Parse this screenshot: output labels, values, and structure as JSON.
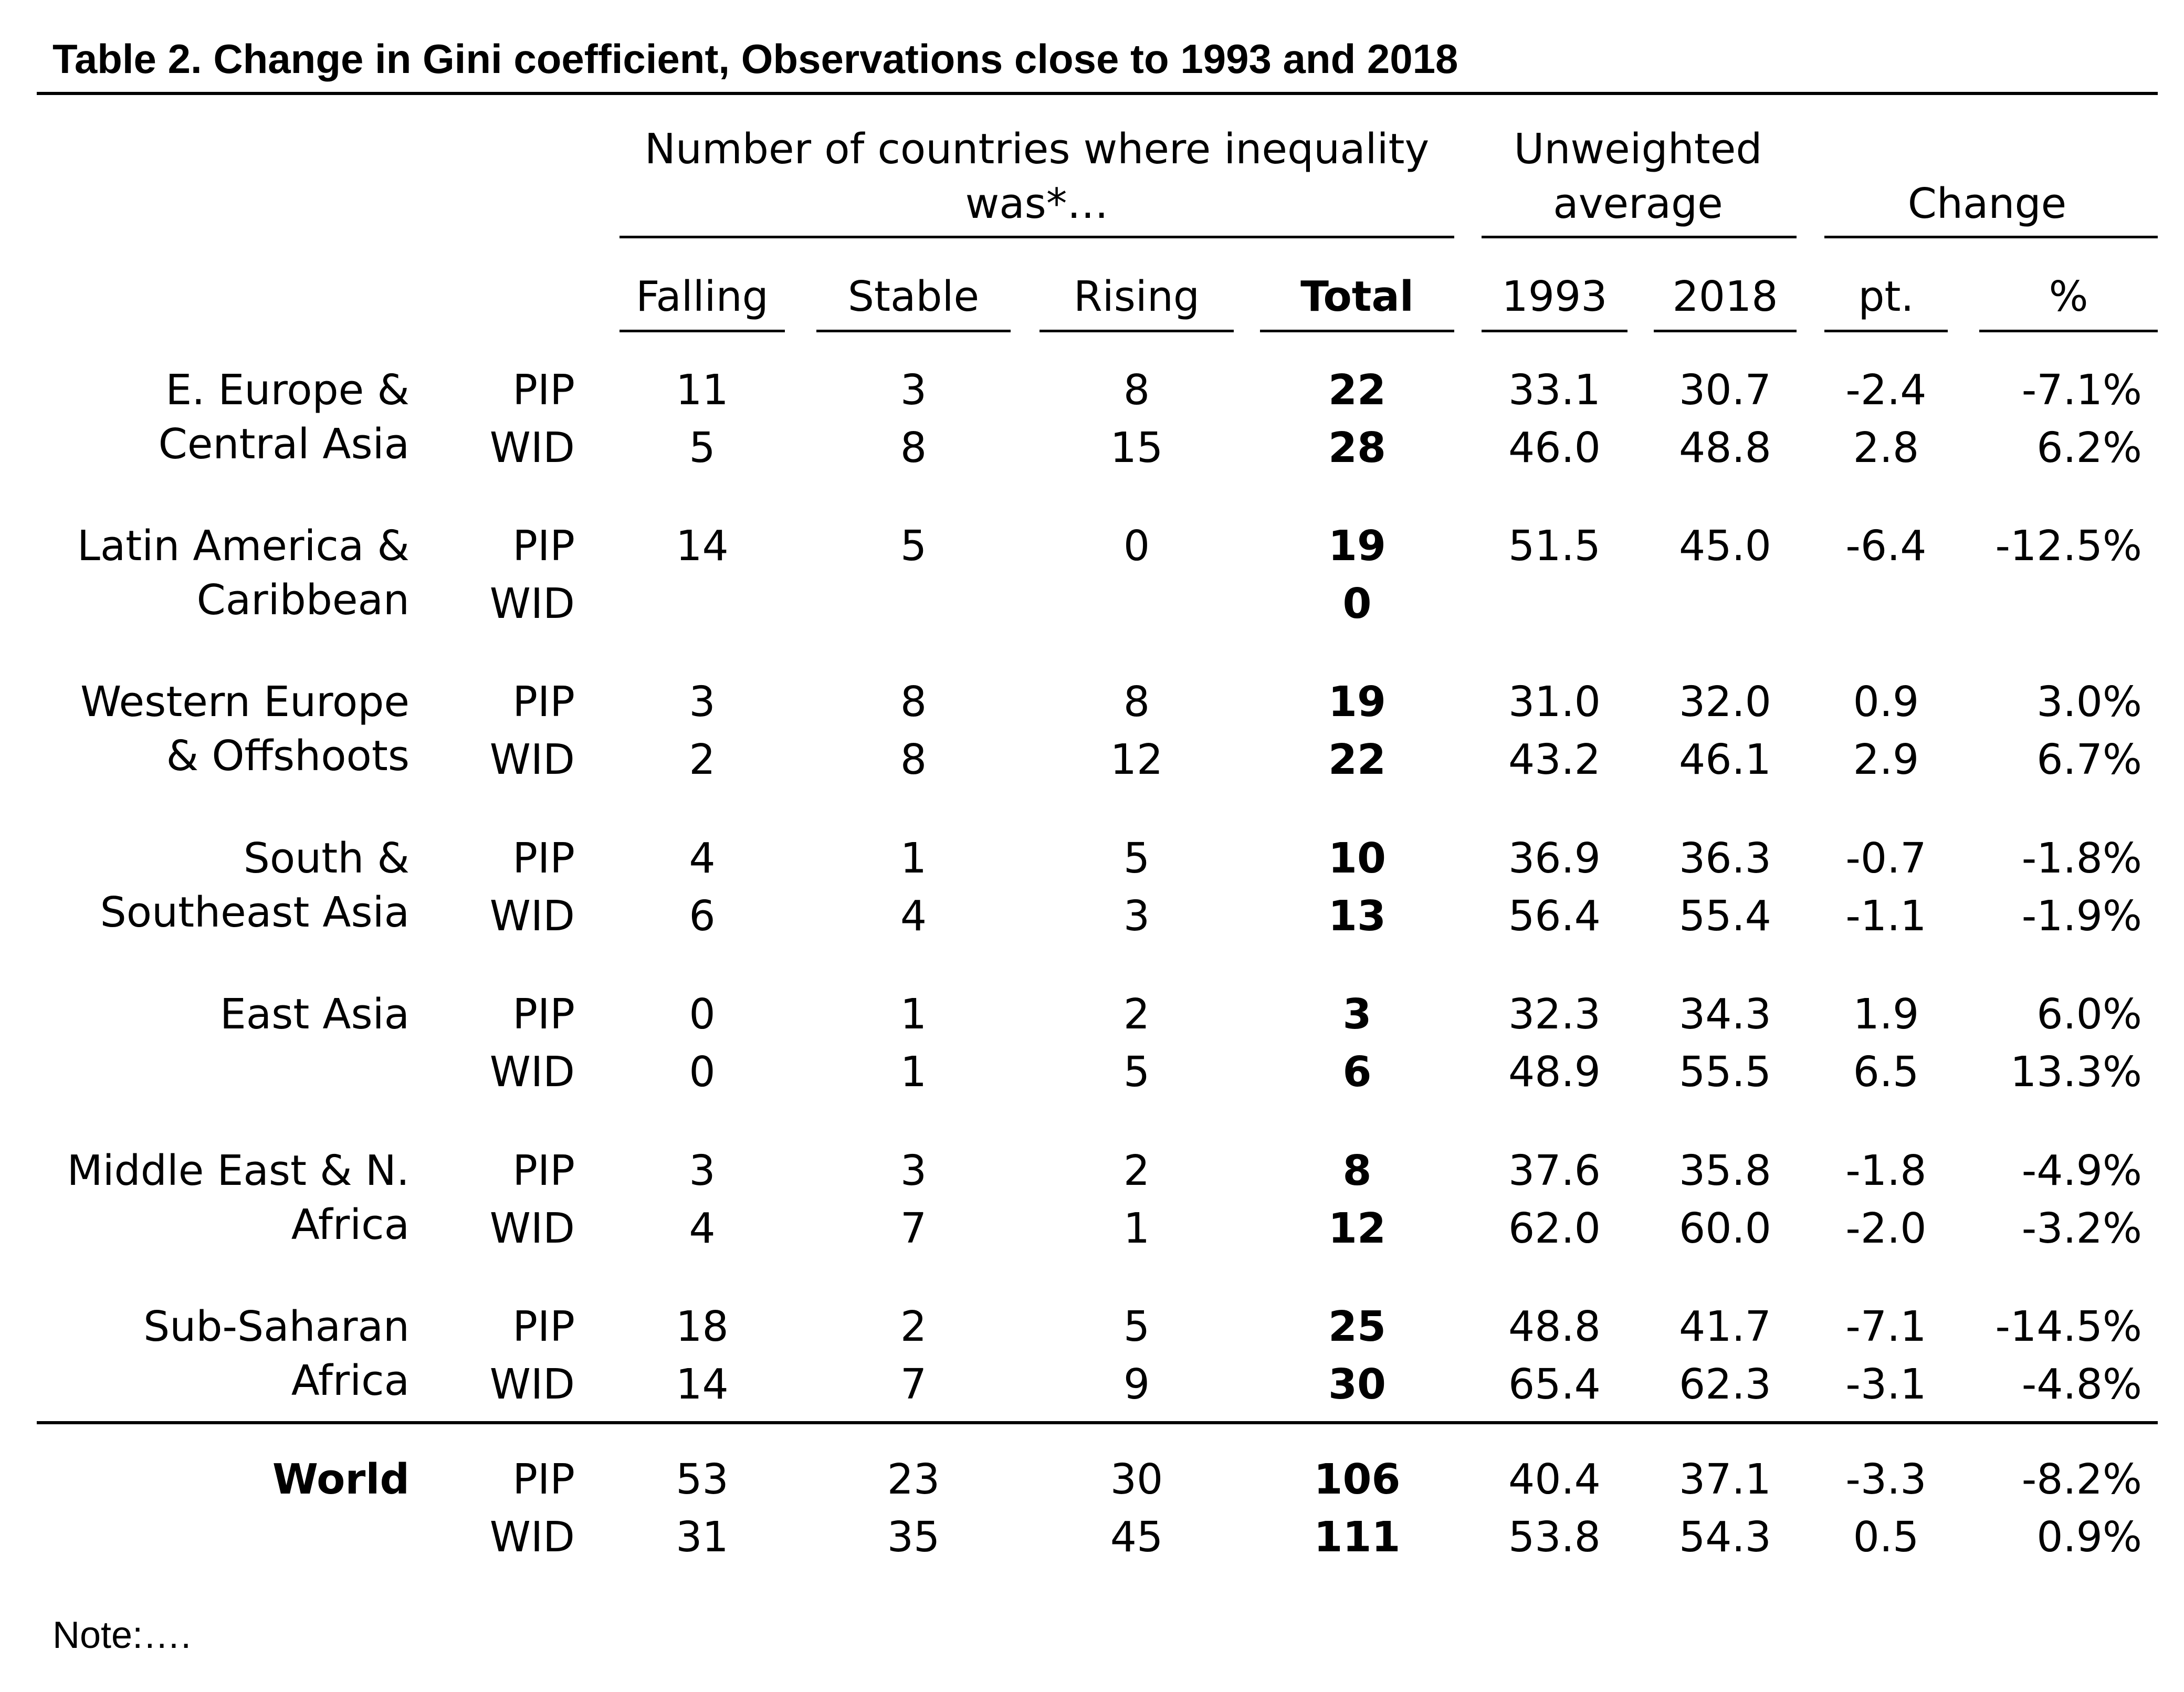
{
  "title": "Table 2. Change in Gini coefficient, Observations close to 1993 and 2018",
  "header": {
    "group_count": "Number of countries where inequality was*…",
    "group_average": "Unweighted average",
    "group_change": "Change",
    "columns": [
      "Falling",
      "Stable",
      "Rising",
      "Total",
      "1993",
      "2018",
      "pt.",
      "%"
    ]
  },
  "regions": [
    {
      "name_lines": [
        "E. Europe &",
        "Central Asia"
      ],
      "rows": [
        {
          "source": "PIP",
          "falling": "11",
          "stable": "3",
          "rising": "8",
          "total": "22",
          "y1993": "33.1",
          "y2018": "30.7",
          "pt": "-2.4",
          "pct": "-7.1%"
        },
        {
          "source": "WID",
          "falling": "5",
          "stable": "8",
          "rising": "15",
          "total": "28",
          "y1993": "46.0",
          "y2018": "48.8",
          "pt": "2.8",
          "pct": "6.2%"
        }
      ]
    },
    {
      "name_lines": [
        "Latin America &",
        "Caribbean"
      ],
      "rows": [
        {
          "source": "PIP",
          "falling": "14",
          "stable": "5",
          "rising": "0",
          "total": "19",
          "y1993": "51.5",
          "y2018": "45.0",
          "pt": "-6.4",
          "pct": "-12.5%"
        },
        {
          "source": "WID",
          "falling": "",
          "stable": "",
          "rising": "",
          "total": "0",
          "y1993": "",
          "y2018": "",
          "pt": "",
          "pct": ""
        }
      ]
    },
    {
      "name_lines": [
        "Western Europe",
        "& Offshoots"
      ],
      "rows": [
        {
          "source": "PIP",
          "falling": "3",
          "stable": "8",
          "rising": "8",
          "total": "19",
          "y1993": "31.0",
          "y2018": "32.0",
          "pt": "0.9",
          "pct": "3.0%"
        },
        {
          "source": "WID",
          "falling": "2",
          "stable": "8",
          "rising": "12",
          "total": "22",
          "y1993": "43.2",
          "y2018": "46.1",
          "pt": "2.9",
          "pct": "6.7%"
        }
      ]
    },
    {
      "name_lines": [
        "South &",
        "Southeast Asia"
      ],
      "rows": [
        {
          "source": "PIP",
          "falling": "4",
          "stable": "1",
          "rising": "5",
          "total": "10",
          "y1993": "36.9",
          "y2018": "36.3",
          "pt": "-0.7",
          "pct": "-1.8%"
        },
        {
          "source": "WID",
          "falling": "6",
          "stable": "4",
          "rising": "3",
          "total": "13",
          "y1993": "56.4",
          "y2018": "55.4",
          "pt": "-1.1",
          "pct": "-1.9%"
        }
      ]
    },
    {
      "name_lines": [
        "East Asia",
        ""
      ],
      "rows": [
        {
          "source": "PIP",
          "falling": "0",
          "stable": "1",
          "rising": "2",
          "total": "3",
          "y1993": "32.3",
          "y2018": "34.3",
          "pt": "1.9",
          "pct": "6.0%"
        },
        {
          "source": "WID",
          "falling": "0",
          "stable": "1",
          "rising": "5",
          "total": "6",
          "y1993": "48.9",
          "y2018": "55.5",
          "pt": "6.5",
          "pct": "13.3%"
        }
      ]
    },
    {
      "name_lines": [
        "Middle East & N.",
        "Africa"
      ],
      "rows": [
        {
          "source": "PIP",
          "falling": "3",
          "stable": "3",
          "rising": "2",
          "total": "8",
          "y1993": "37.6",
          "y2018": "35.8",
          "pt": "-1.8",
          "pct": "-4.9%"
        },
        {
          "source": "WID",
          "falling": "4",
          "stable": "7",
          "rising": "1",
          "total": "12",
          "y1993": "62.0",
          "y2018": "60.0",
          "pt": "-2.0",
          "pct": "-3.2%"
        }
      ]
    },
    {
      "name_lines": [
        "Sub-Saharan",
        "Africa"
      ],
      "rows": [
        {
          "source": "PIP",
          "falling": "18",
          "stable": "2",
          "rising": "5",
          "total": "25",
          "y1993": "48.8",
          "y2018": "41.7",
          "pt": "-7.1",
          "pct": "-14.5%"
        },
        {
          "source": "WID",
          "falling": "14",
          "stable": "7",
          "rising": "9",
          "total": "30",
          "y1993": "65.4",
          "y2018": "62.3",
          "pt": "-3.1",
          "pct": "-4.8%"
        }
      ]
    }
  ],
  "world": {
    "name": "World",
    "rows": [
      {
        "source": "PIP",
        "falling": "53",
        "stable": "23",
        "rising": "30",
        "total": "106",
        "y1993": "40.4",
        "y2018": "37.1",
        "pt": "-3.3",
        "pct": "-8.2%"
      },
      {
        "source": "WID",
        "falling": "31",
        "stable": "35",
        "rising": "45",
        "total": "111",
        "y1993": "53.8",
        "y2018": "54.3",
        "pt": "0.5",
        "pct": "0.9%"
      }
    ]
  },
  "note": "Note:…."
}
